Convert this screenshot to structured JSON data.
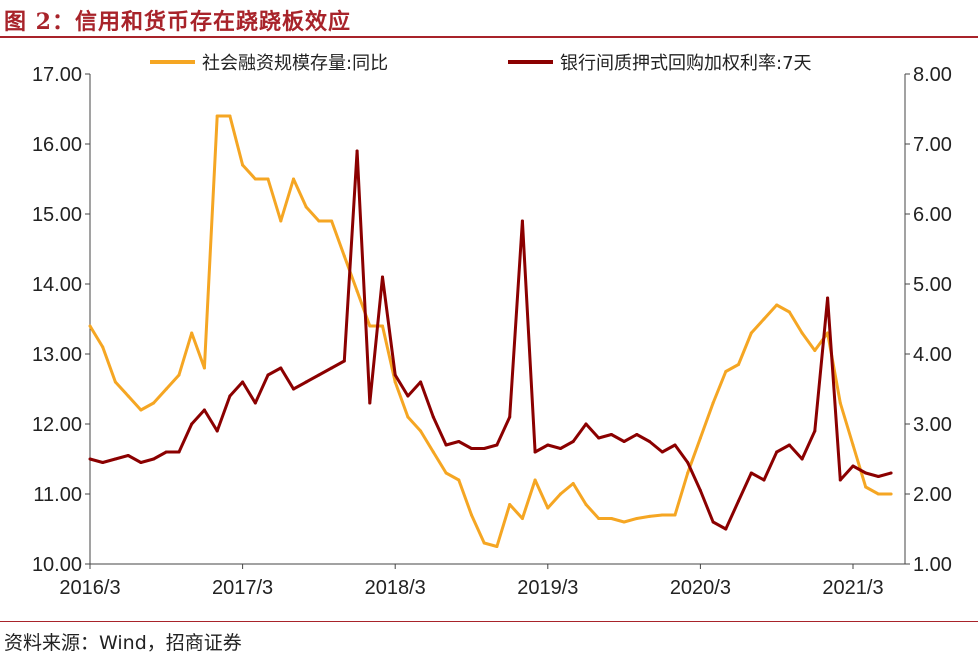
{
  "figure": {
    "title": "图 2：信用和货币存在跷跷板效应",
    "source": "资料来源：Wind，招商证券"
  },
  "colors": {
    "brand": "#a8232a",
    "series_credit": "#f5a623",
    "series_rate": "#8b0000"
  },
  "chart_data": {
    "type": "line",
    "x_tick_labels": [
      "2016/3",
      "2017/3",
      "2018/3",
      "2019/3",
      "2020/3",
      "2021/3"
    ],
    "y_left": {
      "ticks": [
        "10.00",
        "11.00",
        "12.00",
        "13.00",
        "14.00",
        "15.00",
        "16.00",
        "17.00"
      ],
      "range": [
        10,
        17
      ]
    },
    "y_right": {
      "ticks": [
        "1.00",
        "2.00",
        "3.00",
        "4.00",
        "5.00",
        "6.00",
        "7.00",
        "8.00"
      ],
      "range": [
        1,
        8
      ]
    },
    "grid": false,
    "legend_position": "top",
    "series": [
      {
        "name": "社会融资规模存量:同比",
        "axis": "left",
        "x": [
          "2016-03",
          "2016-04",
          "2016-05",
          "2016-06",
          "2016-07",
          "2016-08",
          "2016-09",
          "2016-10",
          "2016-11",
          "2016-12",
          "2017-01",
          "2017-02",
          "2017-03",
          "2017-04",
          "2017-05",
          "2017-06",
          "2017-07",
          "2017-08",
          "2017-09",
          "2017-10",
          "2017-11",
          "2017-12",
          "2018-01",
          "2018-02",
          "2018-03",
          "2018-04",
          "2018-05",
          "2018-06",
          "2018-07",
          "2018-08",
          "2018-09",
          "2018-10",
          "2018-11",
          "2018-12",
          "2019-01",
          "2019-02",
          "2019-03",
          "2019-04",
          "2019-05",
          "2019-06",
          "2019-07",
          "2019-08",
          "2019-09",
          "2019-10",
          "2019-11",
          "2019-12",
          "2020-01",
          "2020-02",
          "2020-03",
          "2020-04",
          "2020-05",
          "2020-06",
          "2020-07",
          "2020-08",
          "2020-09",
          "2020-10",
          "2020-11",
          "2020-12",
          "2021-01",
          "2021-02",
          "2021-03",
          "2021-04",
          "2021-05",
          "2021-06"
        ],
        "values": [
          13.4,
          13.1,
          12.6,
          12.4,
          12.2,
          12.3,
          12.5,
          12.7,
          13.3,
          12.8,
          16.4,
          16.4,
          15.7,
          15.5,
          15.5,
          14.9,
          15.5,
          15.1,
          14.9,
          14.9,
          14.4,
          13.9,
          13.4,
          13.4,
          12.6,
          12.1,
          11.9,
          11.6,
          11.3,
          11.2,
          10.7,
          10.3,
          10.25,
          10.85,
          10.65,
          11.2,
          10.8,
          11.0,
          11.15,
          10.85,
          10.65,
          10.65,
          10.6,
          10.65,
          10.68,
          10.7,
          10.7,
          11.3,
          11.8,
          12.3,
          12.75,
          12.85,
          13.3,
          13.5,
          13.7,
          13.6,
          13.3,
          13.05,
          13.3,
          12.3,
          11.7,
          11.1,
          11.0,
          11.0
        ]
      },
      {
        "name": "银行间质押式回购加权利率:7天",
        "axis": "right",
        "x": [
          "2016-03",
          "2016-04",
          "2016-05",
          "2016-06",
          "2016-07",
          "2016-08",
          "2016-09",
          "2016-10",
          "2016-11",
          "2016-12",
          "2017-01",
          "2017-02",
          "2017-03",
          "2017-04",
          "2017-05",
          "2017-06",
          "2017-07",
          "2017-08",
          "2017-09",
          "2017-10",
          "2017-11",
          "2017-12",
          "2018-01",
          "2018-02",
          "2018-03",
          "2018-04",
          "2018-05",
          "2018-06",
          "2018-07",
          "2018-08",
          "2018-09",
          "2018-10",
          "2018-11",
          "2018-12",
          "2019-01",
          "2019-02",
          "2019-03",
          "2019-04",
          "2019-05",
          "2019-06",
          "2019-07",
          "2019-08",
          "2019-09",
          "2019-10",
          "2019-11",
          "2019-12",
          "2020-01",
          "2020-02",
          "2020-03",
          "2020-04",
          "2020-05",
          "2020-06",
          "2020-07",
          "2020-08",
          "2020-09",
          "2020-10",
          "2020-11",
          "2020-12",
          "2021-01",
          "2021-02",
          "2021-03",
          "2021-04",
          "2021-05",
          "2021-06"
        ],
        "values": [
          2.5,
          2.45,
          2.5,
          2.55,
          2.45,
          2.5,
          2.6,
          2.6,
          3.0,
          3.2,
          2.9,
          3.4,
          3.6,
          3.3,
          3.7,
          3.8,
          3.5,
          3.6,
          3.7,
          3.8,
          3.9,
          6.9,
          3.3,
          5.1,
          3.7,
          3.4,
          3.6,
          3.1,
          2.7,
          2.75,
          2.65,
          2.65,
          2.7,
          3.1,
          5.9,
          2.6,
          2.7,
          2.65,
          2.75,
          3.0,
          2.8,
          2.85,
          2.75,
          2.85,
          2.75,
          2.6,
          2.7,
          2.45,
          2.05,
          1.6,
          1.5,
          1.9,
          2.3,
          2.2,
          2.6,
          2.7,
          2.5,
          2.9,
          4.8,
          2.2,
          2.4,
          2.3,
          2.25,
          2.3
        ]
      }
    ]
  }
}
